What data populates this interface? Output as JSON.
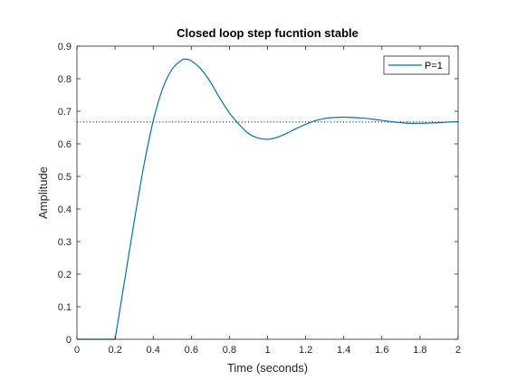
{
  "chart_data": {
    "type": "line",
    "title": "Closed loop step fucntion stable",
    "xlabel": "Time (seconds)",
    "ylabel": "Amplitude",
    "xlim": [
      0,
      2
    ],
    "ylim": [
      0,
      0.9
    ],
    "xticks": [
      0,
      0.2,
      0.4,
      0.6,
      0.8,
      1,
      1.2,
      1.4,
      1.6,
      1.8,
      2
    ],
    "yticks": [
      0,
      0.1,
      0.2,
      0.3,
      0.4,
      0.5,
      0.6,
      0.7,
      0.8,
      0.9
    ],
    "xtick_labels": [
      "0",
      "0.2",
      "0.4",
      "0.6",
      "0.8",
      "1",
      "1.2",
      "1.4",
      "1.6",
      "1.8",
      "2"
    ],
    "ytick_labels": [
      "0",
      "0.1",
      "0.2",
      "0.3",
      "0.4",
      "0.5",
      "0.6",
      "0.7",
      "0.8",
      "0.9"
    ],
    "grid": false,
    "legend_position": "top-right",
    "series": [
      {
        "name": "P=1",
        "color": "#0072BD",
        "x": [
          0,
          0.2,
          0.25,
          0.3,
          0.35,
          0.4,
          0.45,
          0.5,
          0.55,
          0.57,
          0.6,
          0.65,
          0.7,
          0.75,
          0.8,
          0.85,
          0.9,
          0.95,
          1.0,
          1.05,
          1.1,
          1.15,
          1.2,
          1.25,
          1.3,
          1.35,
          1.4,
          1.45,
          1.5,
          1.55,
          1.6,
          1.65,
          1.7,
          1.75,
          1.8,
          1.85,
          1.9,
          1.95,
          2.0
        ],
        "y": [
          0,
          0,
          0.18,
          0.36,
          0.53,
          0.67,
          0.77,
          0.83,
          0.857,
          0.86,
          0.855,
          0.83,
          0.79,
          0.74,
          0.695,
          0.66,
          0.632,
          0.618,
          0.614,
          0.62,
          0.632,
          0.647,
          0.66,
          0.671,
          0.678,
          0.681,
          0.682,
          0.681,
          0.679,
          0.676,
          0.672,
          0.668,
          0.665,
          0.663,
          0.663,
          0.664,
          0.665,
          0.667,
          0.668
        ]
      }
    ],
    "reference_line": {
      "y": 0.667,
      "style": "dotted",
      "color": "#000000"
    }
  }
}
